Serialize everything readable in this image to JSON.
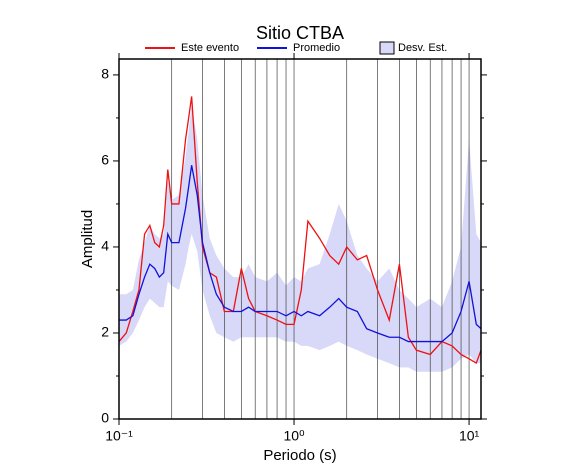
{
  "chart_data": {
    "type": "line",
    "title": "Sitio CTBA",
    "xlabel": "Periodo (s)",
    "ylabel": "Amplitud",
    "x": [
      0.1,
      0.11,
      0.12,
      0.13,
      0.14,
      0.15,
      0.16,
      0.17,
      0.18,
      0.19,
      0.2,
      0.22,
      0.24,
      0.25,
      0.26,
      0.28,
      0.3,
      0.33,
      0.36,
      0.4,
      0.45,
      0.5,
      0.55,
      0.6,
      0.7,
      0.8,
      0.9,
      1.0,
      1.1,
      1.2,
      1.4,
      1.6,
      1.8,
      2.0,
      2.3,
      2.6,
      3.0,
      3.5,
      4,
      4.5,
      5,
      6,
      7,
      8,
      9,
      10,
      11,
      11.7
    ],
    "series": [
      {
        "name": "Este evento",
        "color": "#ee1111",
        "values": [
          1.8,
          2.0,
          2.5,
          3.0,
          4.3,
          4.5,
          4.1,
          4.0,
          4.5,
          5.8,
          5.0,
          5.0,
          6.5,
          7.0,
          7.5,
          5.5,
          4.0,
          3.4,
          3.3,
          2.5,
          2.5,
          3.5,
          2.8,
          2.5,
          2.4,
          2.3,
          2.2,
          2.2,
          3.0,
          4.6,
          4.2,
          3.8,
          3.6,
          4.0,
          3.7,
          3.8,
          3.0,
          2.3,
          3.6,
          1.9,
          1.6,
          1.5,
          1.8,
          1.7,
          1.5,
          1.4,
          1.3,
          1.6
        ]
      },
      {
        "name": "Promedio",
        "color": "#1111dd",
        "values": [
          2.3,
          2.3,
          2.4,
          2.9,
          3.3,
          3.6,
          3.5,
          3.3,
          3.4,
          4.3,
          4.1,
          4.1,
          4.9,
          5.4,
          5.9,
          5.2,
          4.1,
          3.4,
          2.9,
          2.6,
          2.5,
          2.5,
          2.6,
          2.5,
          2.5,
          2.5,
          2.4,
          2.5,
          2.4,
          2.5,
          2.4,
          2.6,
          2.8,
          2.6,
          2.5,
          2.1,
          2.0,
          1.9,
          1.9,
          1.8,
          1.8,
          1.8,
          1.8,
          2.0,
          2.5,
          3.2,
          2.2,
          2.1
        ]
      },
      {
        "name": "Desv. Est.",
        "type": "band",
        "color": "#d8d8f8",
        "lower": [
          1.7,
          1.8,
          2.0,
          2.3,
          2.6,
          2.8,
          2.7,
          2.6,
          2.6,
          3.2,
          3.1,
          3.0,
          3.6,
          4.0,
          4.3,
          3.9,
          3.0,
          2.4,
          2.0,
          1.9,
          1.8,
          1.9,
          1.9,
          1.9,
          1.9,
          1.9,
          1.8,
          1.8,
          1.7,
          1.7,
          1.6,
          1.7,
          1.8,
          1.7,
          1.6,
          1.5,
          1.4,
          1.3,
          1.2,
          1.2,
          1.1,
          1.1,
          1.1,
          1.2,
          1.4,
          1.5,
          1.3,
          1.3
        ],
        "upper": [
          2.9,
          2.9,
          3.0,
          3.7,
          4.1,
          4.5,
          4.3,
          4.2,
          4.3,
          5.5,
          5.1,
          5.2,
          6.1,
          6.7,
          7.3,
          6.5,
          5.2,
          4.2,
          3.8,
          3.5,
          3.3,
          3.3,
          3.6,
          3.3,
          3.2,
          3.4,
          3.1,
          3.3,
          3.2,
          3.5,
          3.6,
          4.3,
          5.0,
          4.6,
          3.8,
          3.5,
          3.2,
          3.5,
          3.0,
          2.8,
          2.6,
          2.8,
          2.6,
          3.2,
          4.0,
          6.5,
          4.3,
          4.1
        ]
      }
    ],
    "xlog": true,
    "xlim": [
      0.1,
      11.7
    ],
    "ylim": [
      0,
      8.37
    ],
    "xticks": [
      {
        "value": 0.1,
        "label": "10⁻¹"
      },
      {
        "value": 1,
        "label": "10⁰"
      },
      {
        "value": 10,
        "label": "10¹"
      }
    ],
    "xgrid": [
      0.2,
      0.3,
      0.4,
      0.5,
      0.6,
      0.7,
      0.8,
      0.9,
      1,
      2,
      3,
      4,
      5,
      6,
      7,
      8,
      9,
      10
    ],
    "yticks": [
      0,
      2,
      4,
      6,
      8
    ],
    "yminor": [
      1,
      3,
      5,
      7
    ]
  }
}
